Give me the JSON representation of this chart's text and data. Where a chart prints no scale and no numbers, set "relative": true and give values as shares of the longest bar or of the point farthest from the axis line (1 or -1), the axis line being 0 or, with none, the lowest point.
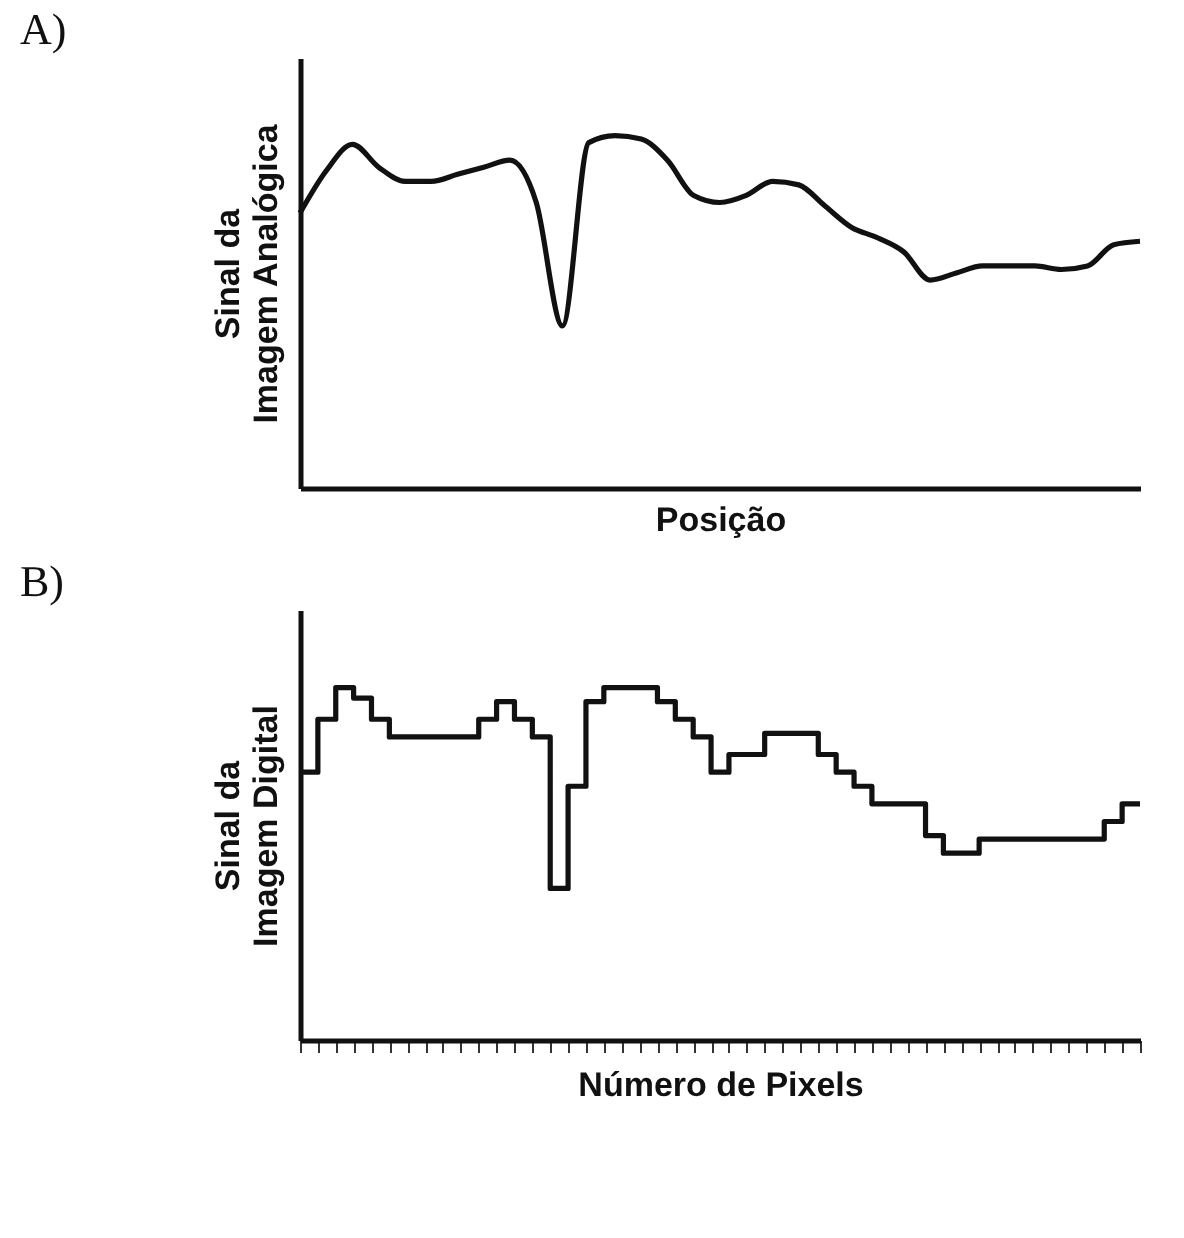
{
  "chart_data": [
    {
      "type": "line",
      "title": "A)",
      "xlabel": "Posição",
      "ylabel": "Sinal da Imagem Analógica",
      "relative": true,
      "color": "#111111",
      "categories": [
        null,
        null,
        null,
        null,
        null,
        null,
        null,
        null,
        null,
        null,
        null,
        null,
        null,
        null,
        null,
        null,
        null,
        null,
        null,
        null,
        null,
        null,
        null,
        null,
        null,
        null,
        null,
        null,
        null,
        null,
        null,
        null,
        null
      ],
      "values": [
        0.78,
        0.9,
        0.975,
        0.91,
        0.87,
        0.87,
        0.89,
        0.91,
        0.93,
        0.81,
        0.46,
        0.98,
        1.0,
        0.99,
        0.93,
        0.83,
        0.81,
        0.83,
        0.87,
        0.86,
        0.8,
        0.74,
        0.71,
        0.67,
        0.59,
        0.61,
        0.63,
        0.63,
        0.63,
        0.62,
        0.63,
        0.69,
        0.7
      ]
    },
    {
      "type": "step",
      "title": "B)",
      "xlabel": "Número de Pixels",
      "ylabel": "Sinal  da Imagem Digital",
      "relative": true,
      "color": "#111111",
      "categories": [
        null,
        null,
        null,
        null,
        null,
        null,
        null,
        null,
        null,
        null,
        null,
        null,
        null,
        null,
        null,
        null,
        null,
        null,
        null,
        null,
        null,
        null,
        null,
        null,
        null,
        null,
        null,
        null,
        null,
        null,
        null,
        null,
        null,
        null,
        null,
        null,
        null,
        null,
        null,
        null,
        null,
        null,
        null,
        null,
        null,
        null,
        null,
        null
      ],
      "values": [
        0.76,
        0.91,
        1.0,
        0.97,
        0.91,
        0.86,
        0.86,
        0.86,
        0.86,
        0.86,
        0.91,
        0.96,
        0.91,
        0.86,
        0.43,
        0.72,
        0.96,
        1.0,
        1.0,
        1.0,
        0.96,
        0.91,
        0.86,
        0.76,
        0.81,
        0.81,
        0.87,
        0.87,
        0.87,
        0.81,
        0.76,
        0.72,
        0.67,
        0.67,
        0.67,
        0.58,
        0.53,
        0.53,
        0.57,
        0.57,
        0.57,
        0.57,
        0.57,
        0.57,
        0.57,
        0.62,
        0.67,
        0.67
      ]
    }
  ]
}
